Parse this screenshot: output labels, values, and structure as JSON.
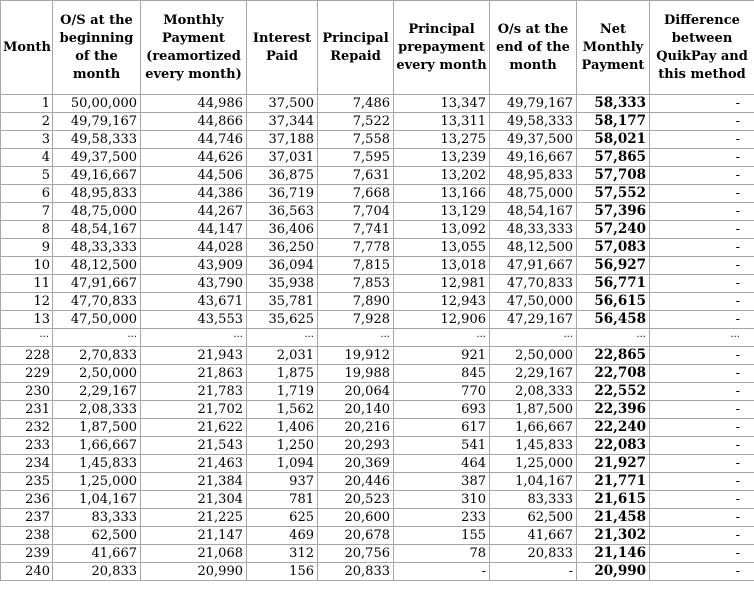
{
  "headers": [
    "Month",
    "O/S at the beginning of the month",
    "Monthly Payment (reamortized every month)",
    "Interest Paid",
    "Principal Repaid",
    "Principal prepayment every month",
    "O/s at the end of the month",
    "Net Monthly Payment",
    "Difference between QuikPay and this method"
  ],
  "rows_top": [
    [
      "1",
      "50,00,000",
      "44,986",
      "37,500",
      "7,486",
      "13,347",
      "49,79,167",
      "58,333",
      "-"
    ],
    [
      "2",
      "49,79,167",
      "44,866",
      "37,344",
      "7,522",
      "13,311",
      "49,58,333",
      "58,177",
      "-"
    ],
    [
      "3",
      "49,58,333",
      "44,746",
      "37,188",
      "7,558",
      "13,275",
      "49,37,500",
      "58,021",
      "-"
    ],
    [
      "4",
      "49,37,500",
      "44,626",
      "37,031",
      "7,595",
      "13,239",
      "49,16,667",
      "57,865",
      "-"
    ],
    [
      "5",
      "49,16,667",
      "44,506",
      "36,875",
      "7,631",
      "13,202",
      "48,95,833",
      "57,708",
      "-"
    ],
    [
      "6",
      "48,95,833",
      "44,386",
      "36,719",
      "7,668",
      "13,166",
      "48,75,000",
      "57,552",
      "-"
    ],
    [
      "7",
      "48,75,000",
      "44,267",
      "36,563",
      "7,704",
      "13,129",
      "48,54,167",
      "57,396",
      "-"
    ],
    [
      "8",
      "48,54,167",
      "44,147",
      "36,406",
      "7,741",
      "13,092",
      "48,33,333",
      "57,240",
      "-"
    ],
    [
      "9",
      "48,33,333",
      "44,028",
      "36,250",
      "7,778",
      "13,055",
      "48,12,500",
      "57,083",
      "-"
    ],
    [
      "10",
      "48,12,500",
      "43,909",
      "36,094",
      "7,815",
      "13,018",
      "47,91,667",
      "56,927",
      "-"
    ],
    [
      "11",
      "47,91,667",
      "43,790",
      "35,938",
      "7,853",
      "12,981",
      "47,70,833",
      "56,771",
      "-"
    ],
    [
      "12",
      "47,70,833",
      "43,671",
      "35,781",
      "7,890",
      "12,943",
      "47,50,000",
      "56,615",
      "-"
    ],
    [
      "13",
      "47,50,000",
      "43,553",
      "35,625",
      "7,928",
      "12,906",
      "47,29,167",
      "56,458",
      "-"
    ]
  ],
  "ellipsis": "...",
  "rows_bottom": [
    [
      "228",
      "2,70,833",
      "21,943",
      "2,031",
      "19,912",
      "921",
      "2,50,000",
      "22,865",
      "-"
    ],
    [
      "229",
      "2,50,000",
      "21,863",
      "1,875",
      "19,988",
      "845",
      "2,29,167",
      "22,708",
      "-"
    ],
    [
      "230",
      "2,29,167",
      "21,783",
      "1,719",
      "20,064",
      "770",
      "2,08,333",
      "22,552",
      "-"
    ],
    [
      "231",
      "2,08,333",
      "21,702",
      "1,562",
      "20,140",
      "693",
      "1,87,500",
      "22,396",
      "-"
    ],
    [
      "232",
      "1,87,500",
      "21,622",
      "1,406",
      "20,216",
      "617",
      "1,66,667",
      "22,240",
      "-"
    ],
    [
      "233",
      "1,66,667",
      "21,543",
      "1,250",
      "20,293",
      "541",
      "1,45,833",
      "22,083",
      "-"
    ],
    [
      "234",
      "1,45,833",
      "21,463",
      "1,094",
      "20,369",
      "464",
      "1,25,000",
      "21,927",
      "-"
    ],
    [
      "235",
      "1,25,000",
      "21,384",
      "937",
      "20,446",
      "387",
      "1,04,167",
      "21,771",
      "-"
    ],
    [
      "236",
      "1,04,167",
      "21,304",
      "781",
      "20,523",
      "310",
      "83,333",
      "21,615",
      "-"
    ],
    [
      "237",
      "83,333",
      "21,225",
      "625",
      "20,600",
      "233",
      "62,500",
      "21,458",
      "-"
    ],
    [
      "238",
      "62,500",
      "21,147",
      "469",
      "20,678",
      "155",
      "41,667",
      "21,302",
      "-"
    ],
    [
      "239",
      "41,667",
      "21,068",
      "312",
      "20,756",
      "78",
      "20,833",
      "21,146",
      "-"
    ],
    [
      "240",
      "20,833",
      "20,990",
      "156",
      "20,833",
      "-",
      "-",
      "20,990",
      "-"
    ]
  ]
}
